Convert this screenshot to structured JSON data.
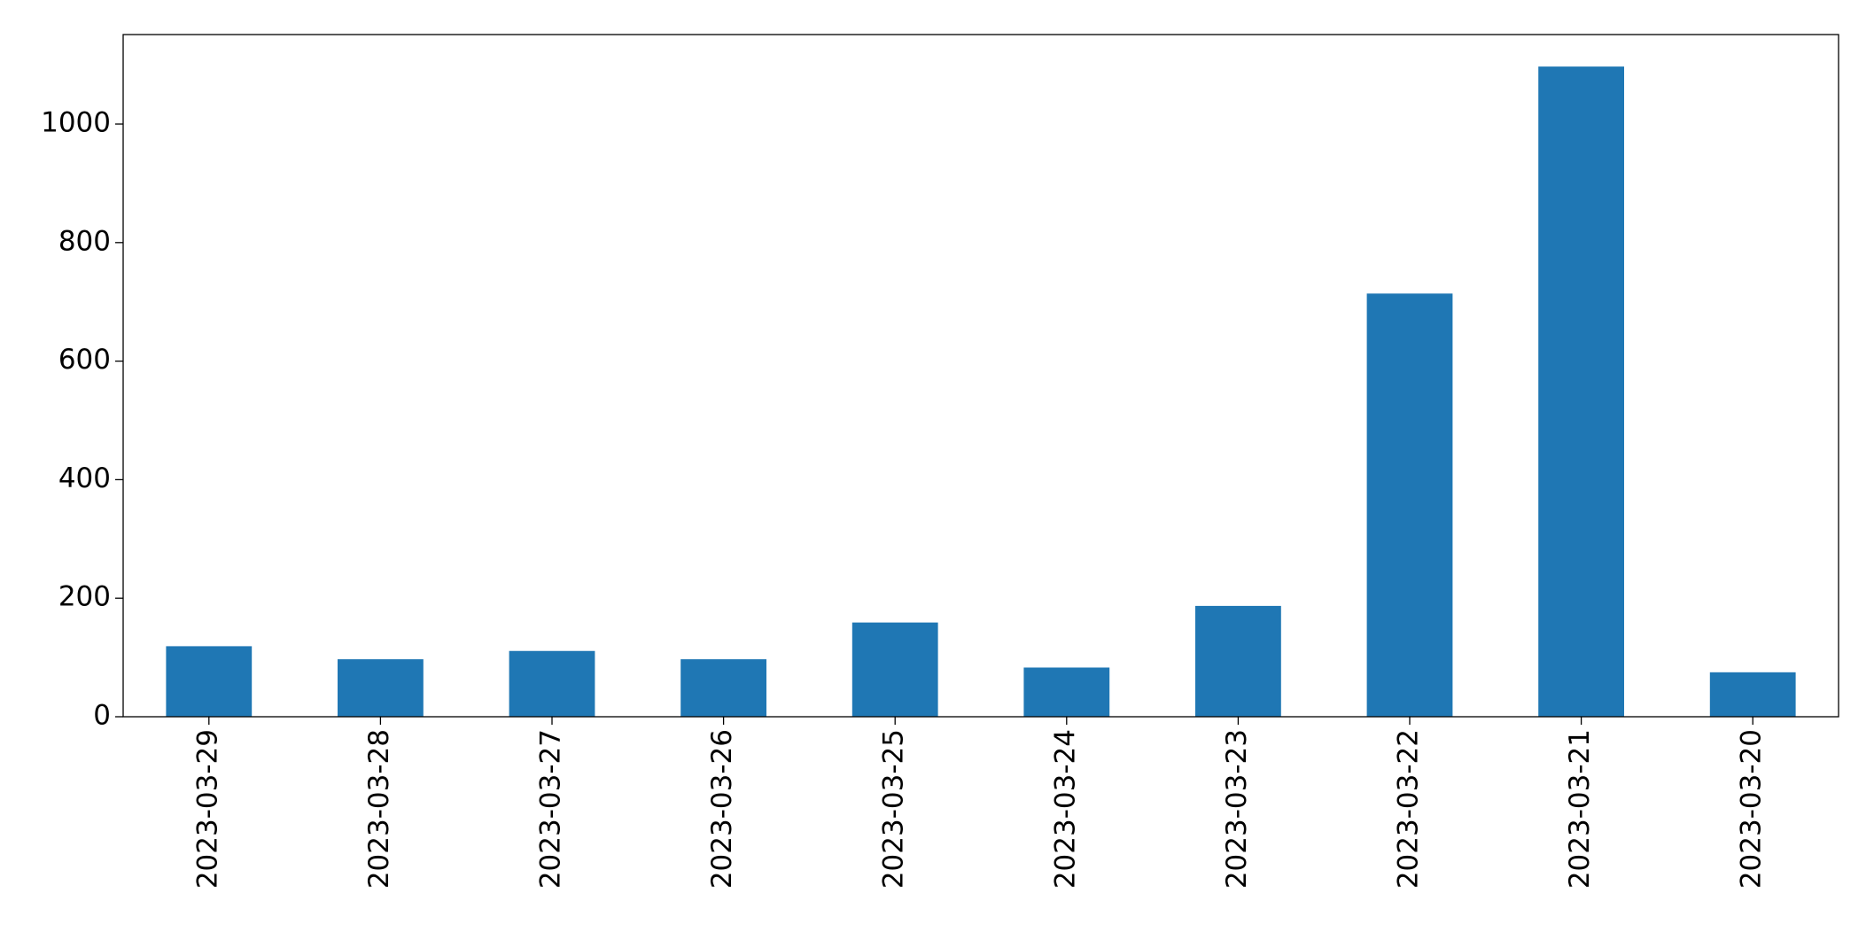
{
  "chart_data": {
    "type": "bar",
    "categories": [
      "2023-03-29",
      "2023-03-28",
      "2023-03-27",
      "2023-03-26",
      "2023-03-25",
      "2023-03-24",
      "2023-03-23",
      "2023-03-22",
      "2023-03-21",
      "2023-03-20"
    ],
    "values": [
      119,
      97,
      111,
      97,
      159,
      83,
      187,
      714,
      1097,
      75
    ],
    "color": "#1f77b4",
    "ylim": [
      0,
      1151
    ],
    "yticks": [
      0,
      200,
      400,
      600,
      800,
      1000
    ],
    "grid": false
  }
}
